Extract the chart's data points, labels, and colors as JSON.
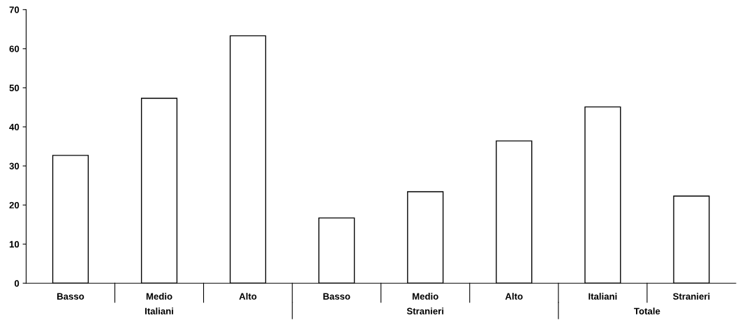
{
  "chart_data": {
    "type": "bar",
    "categories": [
      "Basso",
      "Medio",
      "Alto",
      "Basso",
      "Medio",
      "Alto",
      "Italiani",
      "Stranieri"
    ],
    "values": [
      32.7,
      47.3,
      63.3,
      16.7,
      23.4,
      36.4,
      45.1,
      22.3
    ],
    "color": "#ffffff",
    "ylim": [
      0,
      70
    ],
    "yticks": [
      0,
      10,
      20,
      30,
      40,
      50,
      60,
      70
    ],
    "annotations": [
      "Italiani",
      "Stranieri",
      "Totale"
    ]
  }
}
